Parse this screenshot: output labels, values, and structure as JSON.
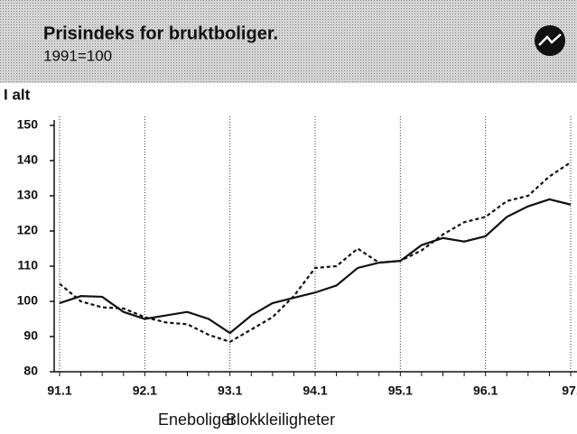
{
  "chart_data": {
    "type": "line",
    "title": "Prisindeks for bruktboliger.",
    "subtitle": "1991=100",
    "y_label": "I alt",
    "categories": [
      "91.1",
      null,
      null,
      null,
      "92.1",
      null,
      null,
      null,
      "93.1",
      null,
      null,
      null,
      "94.1",
      null,
      null,
      null,
      "95.1",
      null,
      null,
      null,
      "96.1",
      null,
      null,
      null,
      "97."
    ],
    "series": [
      {
        "name": "Eneboliger",
        "color": "#111111",
        "dash": false,
        "values": [
          99.5,
          101.5,
          101.3,
          97,
          95,
          96,
          97,
          95,
          91,
          96,
          99.5,
          101,
          102.5,
          104.5,
          109.5,
          111,
          111.5,
          116,
          118,
          117,
          118.5,
          124,
          127,
          129,
          127.5
        ]
      },
      {
        "name": "Blokkleiligheter",
        "color": "#111111",
        "dash": true,
        "values": [
          105,
          100,
          98.3,
          98,
          95.5,
          94,
          93.5,
          90.5,
          88.5,
          92,
          95.5,
          101.5,
          109.5,
          110,
          115,
          111,
          111.5,
          114.5,
          119,
          122.5,
          124,
          128.5,
          130,
          135.5,
          139.5
        ]
      }
    ],
    "ylim": [
      80,
      150
    ],
    "yticks": [
      80,
      90,
      100,
      110,
      120,
      130,
      140,
      150
    ]
  }
}
